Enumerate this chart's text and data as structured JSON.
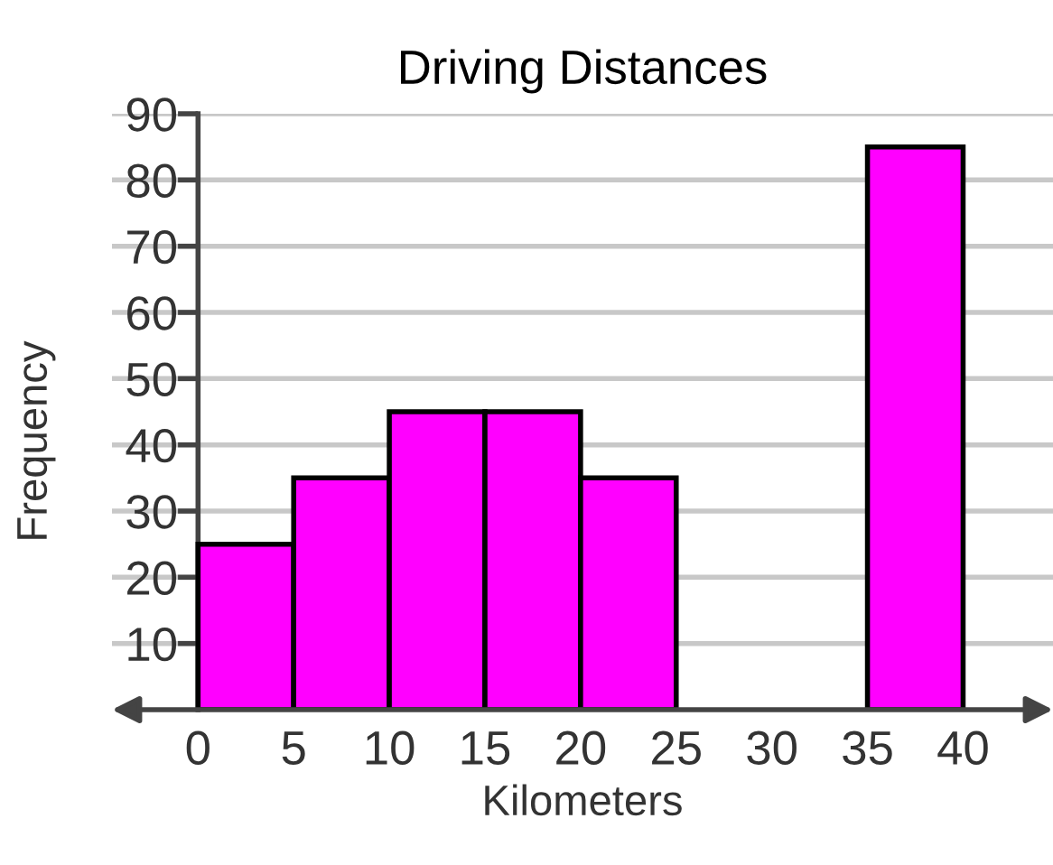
{
  "chart_data": {
    "type": "histogram",
    "title": "Driving Distances",
    "xlabel": "Kilometers",
    "ylabel": "Frequency",
    "bins": [
      0,
      5,
      10,
      15,
      20,
      25,
      30,
      35,
      40
    ],
    "values": [
      25,
      35,
      45,
      45,
      35,
      0,
      0,
      85
    ],
    "color": "#ff00ff",
    "xlim": [
      -4.5,
      44.7
    ],
    "xticks": [
      0,
      5,
      10,
      15,
      20,
      25,
      30,
      35,
      40
    ],
    "ylim": [
      0,
      90
    ],
    "yticks": [
      10,
      20,
      30,
      40,
      50,
      60,
      70,
      80,
      90
    ],
    "grid": "y"
  }
}
